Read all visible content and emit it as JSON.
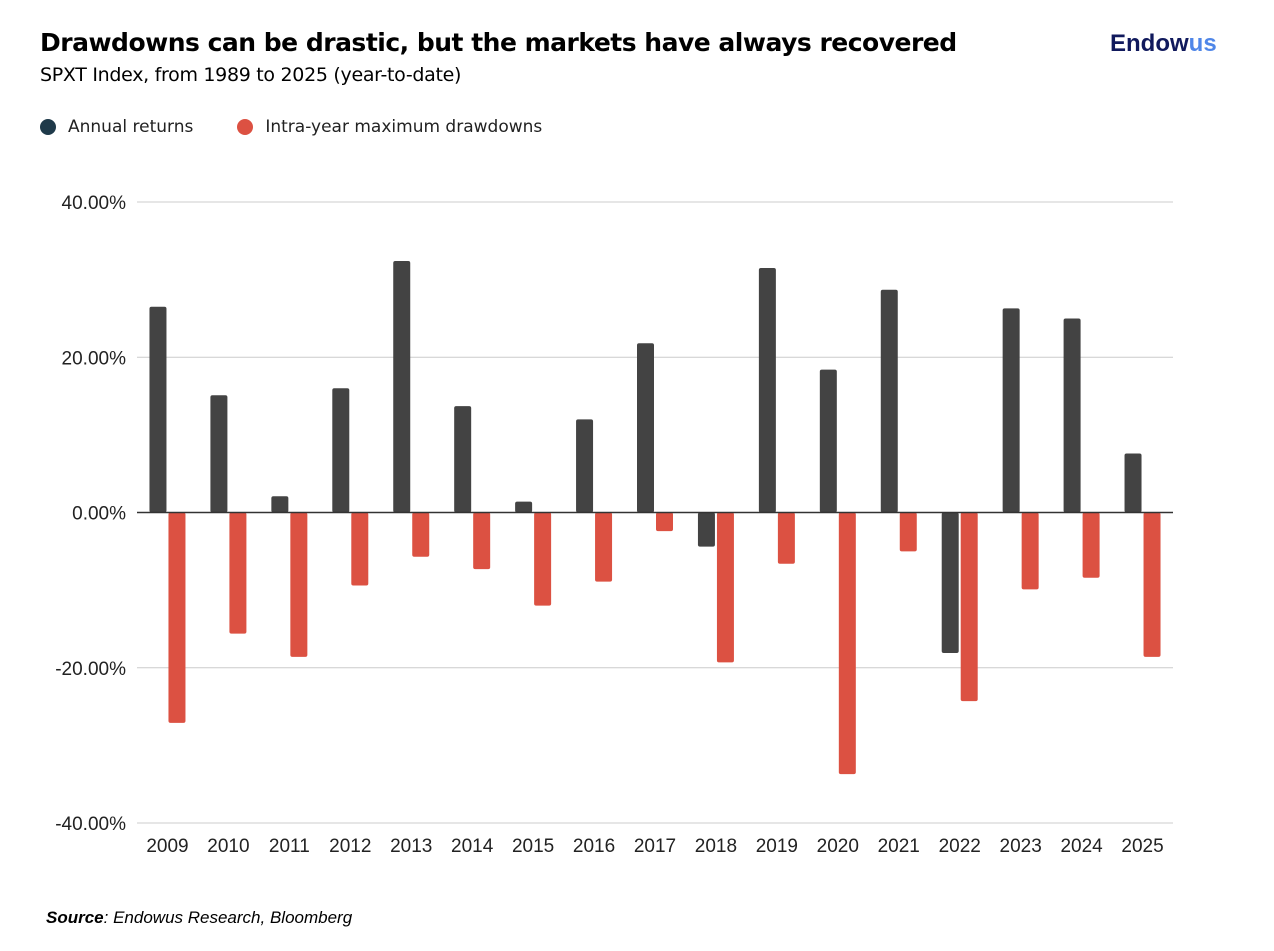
{
  "header": {
    "title": "Drawdowns can be drastic, but the markets have always recovered",
    "subtitle": "SPXT Index, from 1989 to 2025 (year-to-date)",
    "logo": {
      "main": "Endow",
      "accent": "us"
    }
  },
  "source": {
    "label": "Source",
    "text": ": Endowus Research, Bloomberg"
  },
  "chart_data": {
    "type": "bar",
    "categories": [
      "2009",
      "2010",
      "2011",
      "2012",
      "2013",
      "2014",
      "2015",
      "2016",
      "2017",
      "2018",
      "2019",
      "2020",
      "2021",
      "2022",
      "2023",
      "2024",
      "2025"
    ],
    "series": [
      {
        "name": "Annual returns",
        "color": "#434343",
        "values": [
          26.5,
          15.1,
          2.1,
          16.0,
          32.4,
          13.7,
          1.4,
          12.0,
          21.8,
          -4.4,
          31.5,
          18.4,
          28.7,
          -18.1,
          26.3,
          25.0,
          7.6
        ]
      },
      {
        "name": "Intra-year maximum drawdowns",
        "color": "#dc5142",
        "values": [
          -27.1,
          -15.6,
          -18.6,
          -9.4,
          -5.7,
          -7.3,
          -12.0,
          -8.9,
          -2.4,
          -19.3,
          -6.6,
          -33.7,
          -5.0,
          -24.3,
          -9.9,
          -8.4,
          -18.6
        ]
      }
    ],
    "yticks": [
      "40.00%",
      "20.00%",
      "0.00%",
      "-20.00%",
      "-40.00%"
    ],
    "ylim": [
      -40,
      40
    ],
    "grid": true,
    "legend": "top-left"
  }
}
